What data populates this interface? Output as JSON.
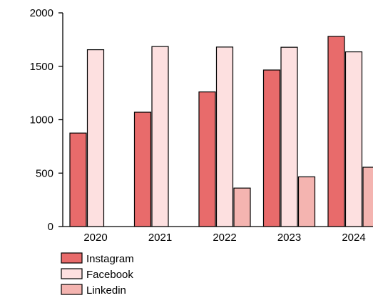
{
  "chart_data": {
    "type": "bar",
    "title": "",
    "xlabel": "",
    "ylabel": "",
    "categories": [
      "2020",
      "2021",
      "2022",
      "2023",
      "2024"
    ],
    "series": [
      {
        "name": "Instagram",
        "values": [
          875,
          1070,
          1260,
          1465,
          1780
        ],
        "color": "#e86b6b"
      },
      {
        "name": "Facebook",
        "values": [
          1655,
          1685,
          1680,
          1678,
          1635
        ],
        "color": "#fde0e0"
      },
      {
        "name": "Linkedin",
        "values": [
          0,
          0,
          360,
          465,
          555
        ],
        "color": "#f4b4b0"
      }
    ],
    "ylim": [
      0,
      2000
    ],
    "yticks": [
      0,
      500,
      1000,
      1500,
      2000
    ],
    "grid": false,
    "legend_position": "bottom-left"
  }
}
